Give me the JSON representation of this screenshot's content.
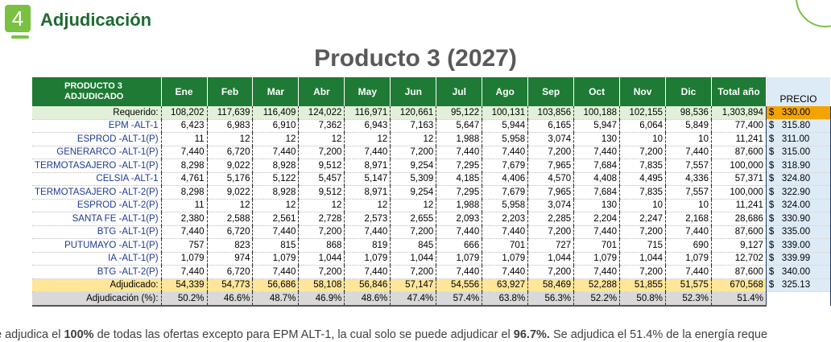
{
  "header": {
    "step_number": "4",
    "section_title": "Adjudicación",
    "main_title": "Producto 3 (2027)"
  },
  "table": {
    "header_label_line1": "PRODUCTO 3",
    "header_label_line2": "ADJUDICADO",
    "months": [
      "Ene",
      "Feb",
      "Mar",
      "Abr",
      "May",
      "Jun",
      "Jul",
      "Ago",
      "Sep",
      "Oct",
      "Nov",
      "Dic"
    ],
    "total_header": "Total año",
    "price_header": "PRECIO",
    "required": {
      "label": "Requerido:",
      "values": [
        "108,202",
        "117,639",
        "116,409",
        "124,022",
        "116,971",
        "120,661",
        "95,122",
        "100,131",
        "103,856",
        "100,188",
        "102,155",
        "98,536"
      ],
      "total": "1,303,894",
      "price": "330.00"
    },
    "rows": [
      {
        "label": "EPM -ALT-1",
        "values": [
          "6,423",
          "6,983",
          "6,910",
          "7,362",
          "6,943",
          "7,163",
          "5,647",
          "5,944",
          "6,165",
          "5,947",
          "6,064",
          "5,849"
        ],
        "total": "77,400",
        "price": "315.80"
      },
      {
        "label": "ESPROD -ALT-1(P)",
        "values": [
          "11",
          "12",
          "12",
          "12",
          "12",
          "12",
          "1,988",
          "5,958",
          "3,074",
          "130",
          "10",
          "10"
        ],
        "total": "11,241",
        "price": "311.00"
      },
      {
        "label": "GENERARCO -ALT-1(P)",
        "values": [
          "7,440",
          "6,720",
          "7,440",
          "7,200",
          "7,440",
          "7,200",
          "7,440",
          "7,440",
          "7,200",
          "7,440",
          "7,200",
          "7,440"
        ],
        "total": "87,600",
        "price": "315.00"
      },
      {
        "label": "TERMOTASAJERO -ALT-1(P)",
        "values": [
          "8,298",
          "9,022",
          "8,928",
          "9,512",
          "8,971",
          "9,254",
          "7,295",
          "7,679",
          "7,965",
          "7,684",
          "7,835",
          "7,557"
        ],
        "total": "100,000",
        "price": "318.90"
      },
      {
        "label": "CELSIA -ALT-1",
        "values": [
          "4,761",
          "5,176",
          "5,122",
          "5,457",
          "5,147",
          "5,309",
          "4,185",
          "4,406",
          "4,570",
          "4,408",
          "4,495",
          "4,336"
        ],
        "total": "57,371",
        "price": "324.80"
      },
      {
        "label": "TERMOTASAJERO -ALT-2(P)",
        "values": [
          "8,298",
          "9,022",
          "8,928",
          "9,512",
          "8,971",
          "9,254",
          "7,295",
          "7,679",
          "7,965",
          "7,684",
          "7,835",
          "7,557"
        ],
        "total": "100,000",
        "price": "322.90"
      },
      {
        "label": "ESPROD -ALT-2(P)",
        "values": [
          "11",
          "12",
          "12",
          "12",
          "12",
          "12",
          "1,988",
          "5,958",
          "3,074",
          "130",
          "10",
          "10"
        ],
        "total": "11,241",
        "price": "324.00"
      },
      {
        "label": "SANTA FE -ALT-1(P)",
        "values": [
          "2,380",
          "2,588",
          "2,561",
          "2,728",
          "2,573",
          "2,655",
          "2,093",
          "2,203",
          "2,285",
          "2,204",
          "2,247",
          "2,168"
        ],
        "total": "28,686",
        "price": "330.90"
      },
      {
        "label": "BTG -ALT-1(P)",
        "values": [
          "7,440",
          "6,720",
          "7,440",
          "7,200",
          "7,440",
          "7,200",
          "7,440",
          "7,440",
          "7,200",
          "7,440",
          "7,200",
          "7,440"
        ],
        "total": "87,600",
        "price": "335.00"
      },
      {
        "label": "PUTUMAYO -ALT-1(P)",
        "values": [
          "757",
          "823",
          "815",
          "868",
          "819",
          "845",
          "666",
          "701",
          "727",
          "701",
          "715",
          "690"
        ],
        "total": "9,127",
        "price": "339.00"
      },
      {
        "label": "IA -ALT-1(P)",
        "values": [
          "1,079",
          "974",
          "1,079",
          "1,044",
          "1,079",
          "1,044",
          "1,079",
          "1,079",
          "1,044",
          "1,079",
          "1,044",
          "1,079"
        ],
        "total": "12,702",
        "price": "339.99"
      },
      {
        "label": "BTG -ALT-2(P)",
        "values": [
          "7,440",
          "6,720",
          "7,440",
          "7,200",
          "7,440",
          "7,200",
          "7,440",
          "7,440",
          "7,200",
          "7,440",
          "7,200",
          "7,440"
        ],
        "total": "87,600",
        "price": "340.00"
      }
    ],
    "adjudicado": {
      "label": "Adjudicado:",
      "values": [
        "54,339",
        "54,773",
        "56,686",
        "58,108",
        "56,846",
        "57,147",
        "54,556",
        "63,927",
        "58,469",
        "52,288",
        "51,855",
        "51,575"
      ],
      "total": "670,568",
      "price": "325.13"
    },
    "percent": {
      "label": "Adjudicación (%):",
      "values": [
        "50.2%",
        "46.6%",
        "48.7%",
        "46.9%",
        "48.6%",
        "47.4%",
        "57.4%",
        "63.8%",
        "56.3%",
        "52.2%",
        "50.8%",
        "52.3%"
      ],
      "total": "51.4%"
    },
    "currency_symbol": "$"
  },
  "footnote": {
    "part1": "e adjudica el ",
    "bold1": "100%",
    "part2": " de todas las ofertas excepto para EPM ALT-1, la cual solo se puede adjudicar el ",
    "bold2": "96.7%.",
    "part3": " Se adjudica el 51.4% de la energía reque"
  },
  "colors": {
    "accent_green": "#7ac142",
    "header_green": "#1e7a34",
    "title_green": "#1e6b32",
    "required_row": "#e2f0d9",
    "adjudicado_row": "#ffe699",
    "percent_row": "#d9d9d9",
    "price_column": "#ddebf7",
    "price_highlight": "#f4a300"
  }
}
